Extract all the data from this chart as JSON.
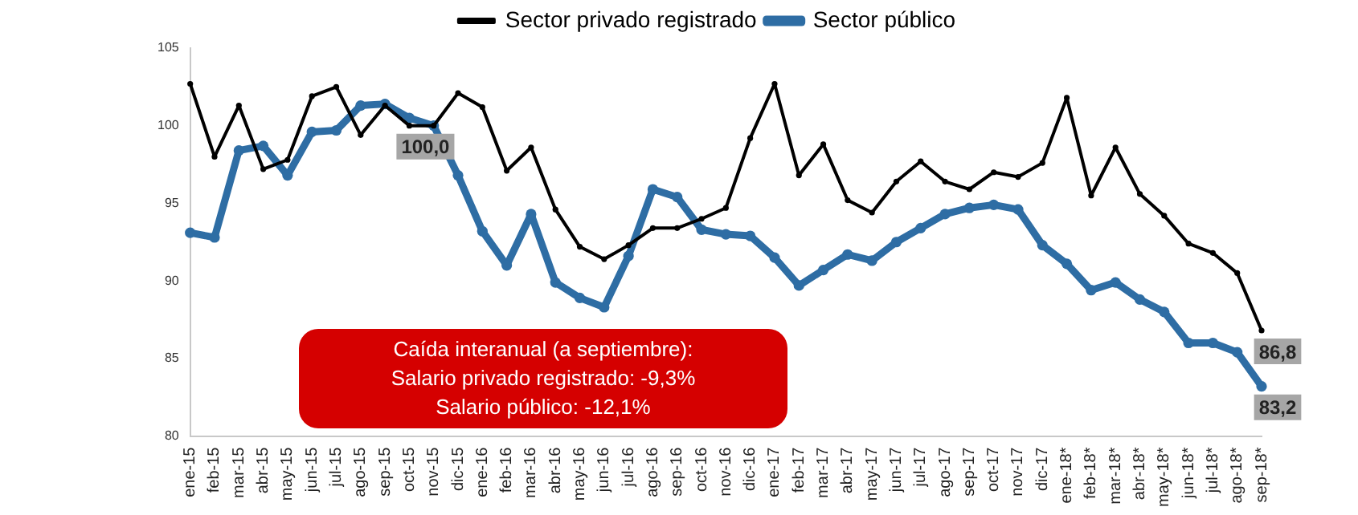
{
  "chart_data": {
    "type": "line",
    "categories": [
      "ene-15",
      "feb-15",
      "mar-15",
      "abr-15",
      "may-15",
      "jun-15",
      "jul-15",
      "ago-15",
      "sep-15",
      "oct-15",
      "nov-15",
      "dic-15",
      "ene-16",
      "feb-16",
      "mar-16",
      "abr-16",
      "may-16",
      "jun-16",
      "jul-16",
      "ago-16",
      "sep-16",
      "oct-16",
      "nov-16",
      "dic-16",
      "ene-17",
      "feb-17",
      "mar-17",
      "abr-17",
      "may-17",
      "jun-17",
      "jul-17",
      "ago-17",
      "sep-17",
      "oct-17",
      "nov-17",
      "dic-17",
      "ene-18*",
      "feb-18*",
      "mar-18*",
      "abr-18*",
      "may-18*",
      "jun-18*",
      "jul-18*",
      "ago-18*",
      "sep-18*"
    ],
    "series": [
      {
        "name": "Sector privado registrado",
        "color": "#000000",
        "values": [
          102.7,
          98.0,
          101.3,
          97.2,
          97.8,
          101.9,
          102.5,
          99.4,
          101.3,
          100.0,
          100.0,
          102.1,
          101.2,
          97.1,
          98.6,
          94.6,
          92.2,
          91.4,
          92.3,
          93.4,
          93.4,
          94.0,
          94.7,
          99.2,
          102.7,
          96.8,
          98.8,
          95.2,
          94.4,
          96.4,
          97.7,
          96.4,
          95.9,
          97.0,
          96.7,
          97.6,
          101.8,
          95.5,
          98.6,
          95.6,
          94.2,
          92.4,
          91.8,
          90.5,
          86.8
        ]
      },
      {
        "name": "Sector público",
        "color": "#2e6da4",
        "values": [
          93.1,
          92.8,
          98.4,
          98.7,
          96.8,
          99.6,
          99.7,
          101.3,
          101.4,
          100.5,
          100.0,
          96.8,
          93.2,
          91.0,
          94.3,
          89.9,
          88.9,
          88.3,
          91.6,
          95.9,
          95.4,
          93.3,
          93.0,
          92.9,
          91.5,
          89.7,
          90.7,
          91.7,
          91.3,
          92.5,
          93.4,
          94.3,
          94.7,
          94.9,
          94.6,
          92.3,
          91.1,
          89.4,
          89.9,
          88.8,
          88.0,
          86.0,
          86.0,
          85.4,
          83.2
        ]
      }
    ],
    "ylim": [
      80,
      105
    ],
    "yticks": [
      80,
      85,
      90,
      95,
      100,
      105
    ],
    "grid": false,
    "legend": "top",
    "marker": "circle",
    "line_style": "solid",
    "annotations": [
      {
        "text": "100,0",
        "x": "oct-15",
        "y": 100.0
      },
      {
        "text": "86,8",
        "x": "sep-18*",
        "y": 86.8
      },
      {
        "text": "83,2",
        "x": "sep-18*",
        "y": 83.2
      },
      "Caída interanual (a septiembre):",
      "Salario privado registrado: -9,3%",
      "Salario público: -12,1%"
    ]
  }
}
